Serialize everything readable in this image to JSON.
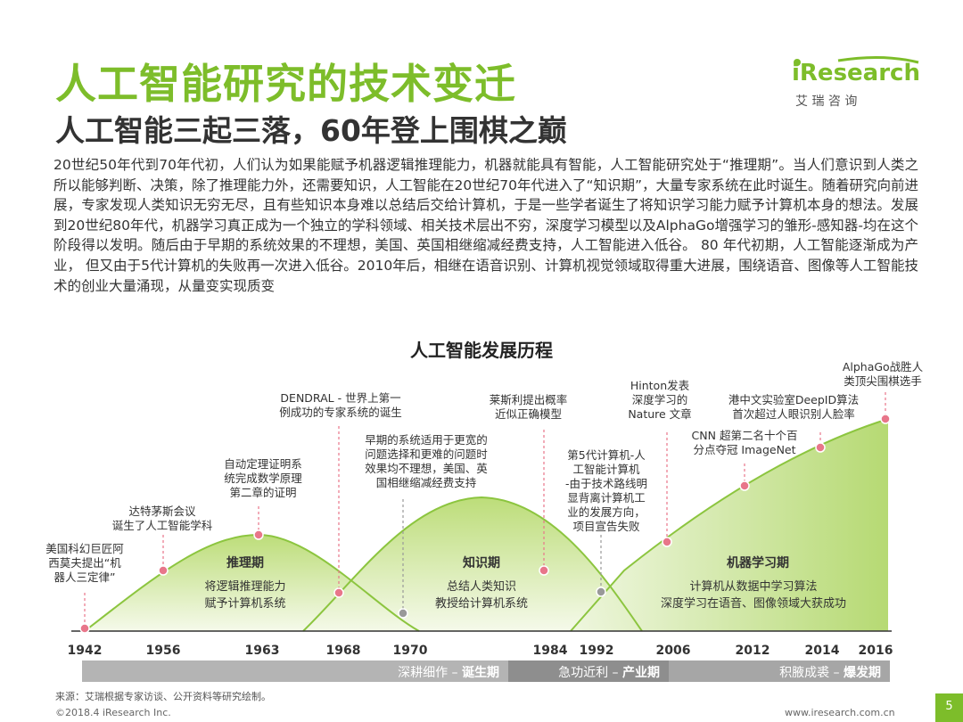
{
  "title": "人工智能研究的技术变迁",
  "subtitle": "人工智能三起三落，60年登上围棋之巅",
  "logo": {
    "brand": "iResearch",
    "cn": "艾  瑞  咨  询"
  },
  "body": "20世纪50年代到70年代初，人们认为如果能赋予机器逻辑推理能力，机器就能具有智能，人工智能研究处于“推理期”。当人们意识到人类之所以能够判断、决策，除了推理能力外，还需要知识，人工智能在20世纪70年代进入了“知识期”，大量专家系统在此时诞生。随着研究向前进展，专家发现人类知识无穷无尽，且有些知识本身难以总结后交给计算机，于是一些学者诞生了将知识学习能力赋予计算机本身的想法。发展到20世纪80年代，机器学习真正成为一个独立的学科领域、相关技术层出不穷，深度学习模型以及AlphaGo增强学习的雏形-感知器-均在这个阶段得以发明。随后由于早期的系统效果的不理想，美国、英国相继缩减经费支持，人工智能进入低谷。 80 年代初期，人工智能逐渐成为产业， 但又由于5代计算机的失败再一次进入低谷。2010年后，相继在语音识别、计算机视觉领域取得重大进展，围绕语音、图像等人工智能技术的创业大量涌现，从量变实现质变",
  "chart": {
    "title": "人工智能发展历程",
    "years": [
      "1942",
      "1956",
      "1963",
      "1968",
      "1970",
      "1984",
      "1992",
      "2006",
      "2012",
      "2014",
      "2016"
    ],
    "phases": [
      {
        "name": "推理期",
        "desc1": "将逻辑推理能力",
        "desc2": "赋予计算机系统"
      },
      {
        "name": "知识期",
        "desc1": "总结人类知识",
        "desc2": "教授给计算机系统"
      },
      {
        "name": "机器学习期",
        "desc1": "计算机从数据中学习算法",
        "desc2": "深度学习在语音、图像领域大获成功"
      }
    ],
    "eras": [
      {
        "label": "深耕细作 – ",
        "bold": "诞生期"
      },
      {
        "label": "急功近利 – ",
        "bold": "产业期"
      },
      {
        "label": "积腋成裘 – ",
        "bold": "爆发期"
      }
    ],
    "annotations": [
      {
        "lines": [
          "美国科幻巨匠阿",
          "西莫夫提出“机",
          "器人三定律”"
        ]
      },
      {
        "lines": [
          "达特茅斯会议",
          "诞生了人工智能学科"
        ]
      },
      {
        "lines": [
          "自动定理证明系",
          "统完成数学原理",
          "第二章的证明"
        ]
      },
      {
        "lines": [
          "DENDRAL - 世界上第一",
          "例成功的专家系统的诞生"
        ]
      },
      {
        "lines": [
          "早期的系统适用于更宽的",
          "问题选择和更难的问题时",
          "效果均不理想，美国、英",
          "国相继缩减经费支持"
        ]
      },
      {
        "lines": [
          "莱斯利提出概率",
          "近似正确模型"
        ]
      },
      {
        "lines": [
          "第5代计算机-人",
          "工智能计算机",
          "-由于技术路线明",
          "显背离计算机工",
          "业的发展方向，",
          "项目宣告失败"
        ]
      },
      {
        "lines": [
          "Hinton发表",
          "深度学习的",
          "Nature 文章"
        ]
      },
      {
        "lines": [
          "CNN 超第二名十个百",
          "分点夺冠 ImageNet"
        ]
      },
      {
        "lines": [
          "港中文实验室DeepID算法",
          "首次超过人眼识别人脸率"
        ]
      },
      {
        "lines": [
          "AlphaGo战胜人",
          "类顶尖围棋选手"
        ]
      }
    ]
  },
  "footer": {
    "source": "来源：艾瑞根据专家访谈、公开资料等研究绘制。",
    "copyright": "©2018.4 iResearch Inc.",
    "website": "www.iresearch.com.cn",
    "page": "5"
  },
  "colors": {
    "accent": "#7dbd2a",
    "marker": "#e8768a"
  }
}
